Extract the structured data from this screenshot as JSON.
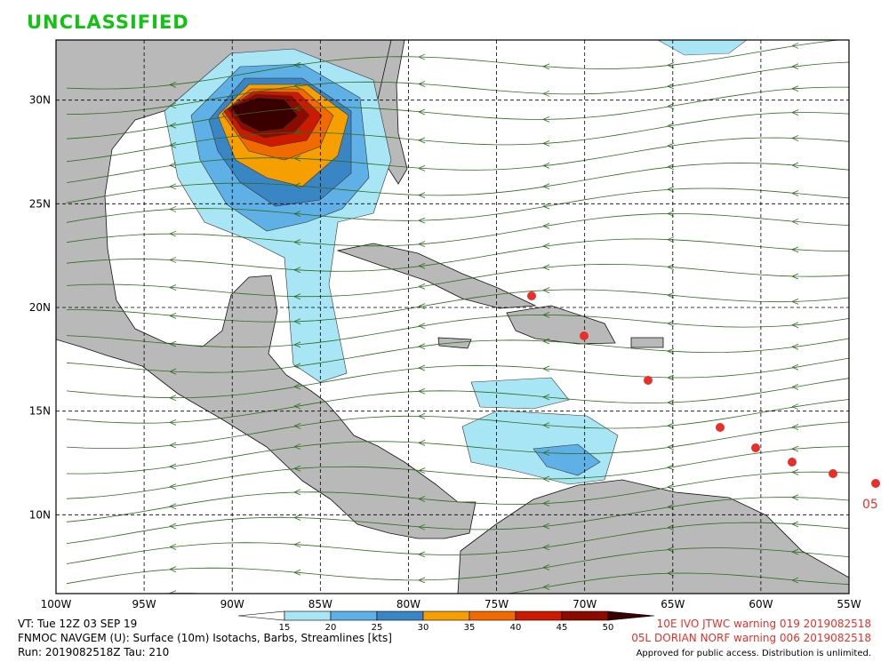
{
  "header": {
    "classification": "UNCLASSIFIED"
  },
  "map": {
    "lon_range": [
      -100,
      -55
    ],
    "lat_range": [
      6.2,
      32.9
    ],
    "lat_lines": [
      {
        "value": 30,
        "label": "30N"
      },
      {
        "value": 25,
        "label": "25N"
      },
      {
        "value": 20,
        "label": "20N"
      },
      {
        "value": 15,
        "label": "15N"
      },
      {
        "value": 10,
        "label": "10N"
      }
    ],
    "lon_lines": [
      {
        "value": -100,
        "label": "100W"
      },
      {
        "value": -95,
        "label": "95W"
      },
      {
        "value": -90,
        "label": "90W"
      },
      {
        "value": -85,
        "label": "85W"
      },
      {
        "value": -80,
        "label": "80W"
      },
      {
        "value": -75,
        "label": "75W"
      },
      {
        "value": -70,
        "label": "70W"
      },
      {
        "value": -65,
        "label": "65W"
      },
      {
        "value": -60,
        "label": "60W"
      },
      {
        "value": -55,
        "label": "55W"
      }
    ],
    "storm_label": "05"
  },
  "colorbar": {
    "labels": [
      15,
      20,
      25,
      30,
      35,
      40,
      45,
      50
    ],
    "colors": [
      "#ffffff",
      "#a8e6f5",
      "#5fb0e6",
      "#3a86c4",
      "#f5a000",
      "#f06a00",
      "#cc1a00",
      "#8c0a00",
      "#3a0000"
    ]
  },
  "footer": {
    "valid_time": "VT: Tue 12Z 03 SEP 19",
    "product": "FNMOC NAVGEM (U): Surface (10m) Isotachs, Barbs, Streamlines [kts]",
    "run": "Run: 2019082518Z Tau: 210",
    "warning_1": "10E IVO JTWC warning 019 2019082518",
    "warning_2": "05L DORIAN NORF warning 006 2019082518",
    "disclaimer": "Approved for public access. Distribution is unlimited."
  }
}
